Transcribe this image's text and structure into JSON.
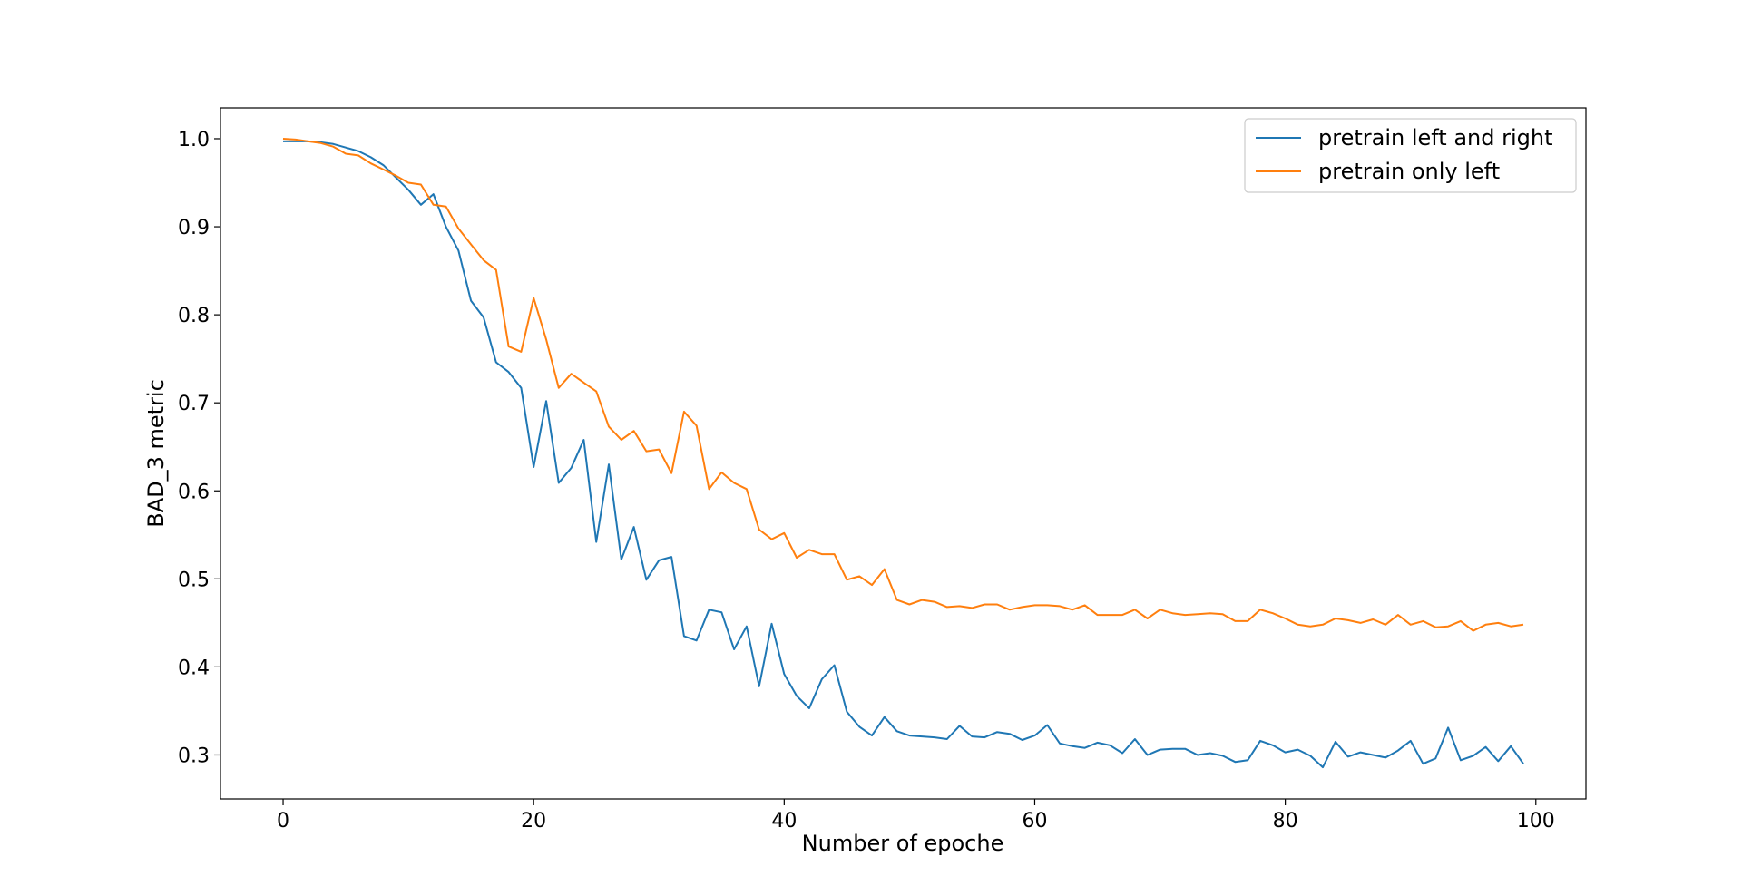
{
  "chart_data": {
    "type": "line",
    "title": "",
    "xlabel": "Number of epoche",
    "ylabel": "BAD_3 metric",
    "xlim": [
      -5,
      104
    ],
    "ylim": [
      0.25,
      1.035
    ],
    "xticks": [
      0,
      20,
      40,
      60,
      80,
      100
    ],
    "xtick_labels": [
      "0",
      "20",
      "40",
      "60",
      "80",
      "100"
    ],
    "yticks": [
      0.3,
      0.4,
      0.5,
      0.6,
      0.7,
      0.8,
      0.9,
      1.0
    ],
    "ytick_labels": [
      "0.3",
      "0.4",
      "0.5",
      "0.6",
      "0.7",
      "0.8",
      "0.9",
      "1.0"
    ],
    "grid": false,
    "legend_position": "top-right",
    "x": [
      0,
      1,
      2,
      3,
      4,
      5,
      6,
      7,
      8,
      9,
      10,
      11,
      12,
      13,
      14,
      15,
      16,
      17,
      18,
      19,
      20,
      21,
      22,
      23,
      24,
      25,
      26,
      27,
      28,
      29,
      30,
      31,
      32,
      33,
      34,
      35,
      36,
      37,
      38,
      39,
      40,
      41,
      42,
      43,
      44,
      45,
      46,
      47,
      48,
      49,
      50,
      51,
      52,
      53,
      54,
      55,
      56,
      57,
      58,
      59,
      60,
      61,
      62,
      63,
      64,
      65,
      66,
      67,
      68,
      69,
      70,
      71,
      72,
      73,
      74,
      75,
      76,
      77,
      78,
      79,
      80,
      81,
      82,
      83,
      84,
      85,
      86,
      87,
      88,
      89,
      90,
      91,
      92,
      93,
      94,
      95,
      96,
      97,
      98,
      99
    ],
    "series": [
      {
        "name": "pretrain left and right",
        "color": "#1f77b4",
        "values": [
          0.997,
          0.997,
          0.997,
          0.996,
          0.994,
          0.99,
          0.986,
          0.979,
          0.97,
          0.956,
          0.942,
          0.925,
          0.937,
          0.9,
          0.873,
          0.816,
          0.797,
          0.746,
          0.735,
          0.717,
          0.627,
          0.702,
          0.609,
          0.626,
          0.658,
          0.542,
          0.63,
          0.522,
          0.559,
          0.499,
          0.521,
          0.525,
          0.435,
          0.43,
          0.465,
          0.462,
          0.42,
          0.446,
          0.378,
          0.449,
          0.392,
          0.367,
          0.353,
          0.386,
          0.402,
          0.349,
          0.332,
          0.322,
          0.343,
          0.327,
          0.322,
          0.321,
          0.32,
          0.318,
          0.333,
          0.321,
          0.32,
          0.326,
          0.324,
          0.317,
          0.322,
          0.334,
          0.313,
          0.31,
          0.308,
          0.314,
          0.311,
          0.302,
          0.318,
          0.3,
          0.306,
          0.307,
          0.307,
          0.3,
          0.302,
          0.299,
          0.292,
          0.294,
          0.316,
          0.311,
          0.303,
          0.306,
          0.299,
          0.286,
          0.315,
          0.298,
          0.303,
          0.3,
          0.297,
          0.305,
          0.316,
          0.29,
          0.296,
          0.331,
          0.294,
          0.299,
          0.309,
          0.293,
          0.31,
          0.29
        ]
      },
      {
        "name": "pretrain only left",
        "color": "#ff7f0e",
        "values": [
          1.0,
          0.999,
          0.997,
          0.995,
          0.991,
          0.983,
          0.981,
          0.972,
          0.965,
          0.958,
          0.95,
          0.948,
          0.925,
          0.923,
          0.898,
          0.88,
          0.862,
          0.851,
          0.764,
          0.758,
          0.819,
          0.772,
          0.717,
          0.733,
          0.723,
          0.713,
          0.673,
          0.658,
          0.668,
          0.645,
          0.647,
          0.62,
          0.69,
          0.674,
          0.602,
          0.621,
          0.609,
          0.602,
          0.556,
          0.545,
          0.552,
          0.524,
          0.533,
          0.528,
          0.528,
          0.499,
          0.503,
          0.493,
          0.511,
          0.476,
          0.471,
          0.476,
          0.474,
          0.468,
          0.469,
          0.467,
          0.471,
          0.471,
          0.465,
          0.468,
          0.47,
          0.47,
          0.469,
          0.465,
          0.47,
          0.459,
          0.459,
          0.459,
          0.465,
          0.455,
          0.465,
          0.461,
          0.459,
          0.46,
          0.461,
          0.46,
          0.452,
          0.452,
          0.465,
          0.461,
          0.455,
          0.448,
          0.446,
          0.448,
          0.455,
          0.453,
          0.45,
          0.454,
          0.448,
          0.459,
          0.448,
          0.452,
          0.445,
          0.446,
          0.452,
          0.441,
          0.448,
          0.45,
          0.446,
          0.448
        ]
      }
    ]
  }
}
